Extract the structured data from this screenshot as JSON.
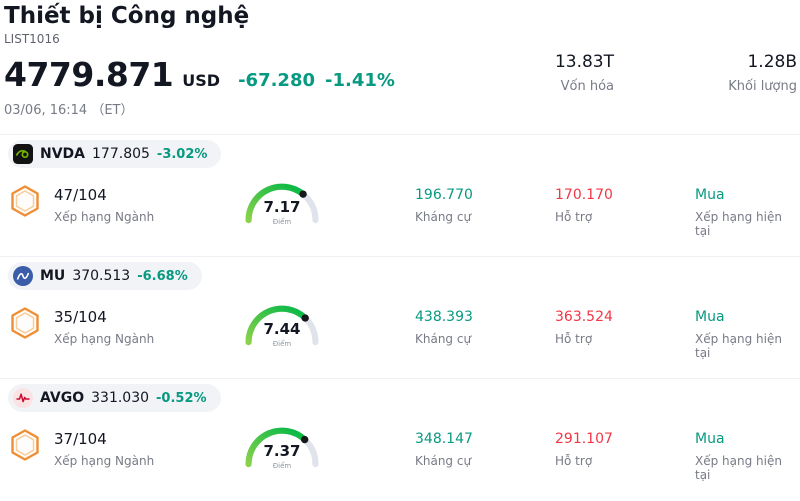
{
  "header": {
    "title": "Thiết bị Công nghệ",
    "subtitle": "LIST1016",
    "price": "4779.871",
    "currency": "USD",
    "change_abs": "-67.280",
    "change_pct": "-1.41%",
    "datetime": "03/06, 16:14 （ET）",
    "market_cap": {
      "value": "13.83T",
      "label": "Vốn hóa"
    },
    "volume": {
      "value": "1.28B",
      "label": "Khối lượng"
    }
  },
  "columns": {
    "rank": "Xếp hạng Ngành",
    "score": "Điểm",
    "resistance": "Kháng cự",
    "support": "Hỗ trợ",
    "rating": "Xếp hạng hiện tại"
  },
  "colors": {
    "green": "#089981",
    "red": "#f23645",
    "orange": "#ef8f35",
    "gauge_track": "#e0e3eb",
    "gauge_gradient": [
      "#8bd24a",
      "#00b746"
    ],
    "gauge_dot": "#16181c"
  },
  "gauge": {
    "max": 10
  },
  "icons": {
    "rank_badge": "hexagon-badge-icon",
    "logos": [
      "nvidia-logo",
      "micron-logo",
      "broadcom-logo"
    ]
  },
  "stocks": [
    {
      "ticker": "NVDA",
      "price": "177.805",
      "change": "-3.02%",
      "rank": "47/104",
      "score": 7.17,
      "score_display": "7.17",
      "resistance": "196.770",
      "support": "170.170",
      "rating": "Mua"
    },
    {
      "ticker": "MU",
      "price": "370.513",
      "change": "-6.68%",
      "rank": "35/104",
      "score": 7.44,
      "score_display": "7.44",
      "resistance": "438.393",
      "support": "363.524",
      "rating": "Mua"
    },
    {
      "ticker": "AVGO",
      "price": "331.030",
      "change": "-0.52%",
      "rank": "37/104",
      "score": 7.37,
      "score_display": "7.37",
      "resistance": "348.147",
      "support": "291.107",
      "rating": "Mua"
    }
  ]
}
